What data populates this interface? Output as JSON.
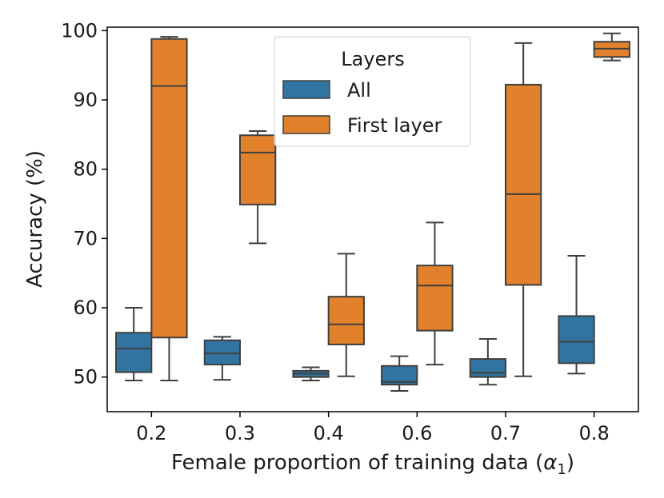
{
  "chart_data": {
    "type": "box",
    "xlabel": "Female proportion of training data (",
    "xlabel_symbol": "α",
    "xlabel_sub": "1",
    "xlabel_close": ")",
    "ylabel": "Accuracy (%)",
    "ylim": [
      45,
      100.5
    ],
    "yticks": [
      50,
      60,
      70,
      80,
      90,
      100
    ],
    "categories": [
      "0.2",
      "0.3",
      "0.4",
      "0.6",
      "0.7",
      "0.8"
    ],
    "legend": {
      "title": "Layers",
      "position": "upper center"
    },
    "grid": false,
    "series": [
      {
        "name": "All",
        "color": "#3274a1",
        "boxes": [
          {
            "whislo": 49.5,
            "q1": 50.7,
            "med": 54.1,
            "q3": 56.4,
            "whishi": 60.0
          },
          {
            "whislo": 49.6,
            "q1": 51.8,
            "med": 53.4,
            "q3": 55.3,
            "whishi": 55.8
          },
          {
            "whislo": 49.5,
            "q1": 50.0,
            "med": 50.5,
            "q3": 50.9,
            "whishi": 51.4
          },
          {
            "whislo": 48.0,
            "q1": 48.9,
            "med": 49.3,
            "q3": 51.6,
            "whishi": 53.0
          },
          {
            "whislo": 48.9,
            "q1": 50.0,
            "med": 50.6,
            "q3": 52.6,
            "whishi": 55.5
          },
          {
            "whislo": 50.5,
            "q1": 52.0,
            "med": 55.1,
            "q3": 58.8,
            "whishi": 67.5
          }
        ]
      },
      {
        "name": "First layer",
        "color": "#e1812c",
        "boxes": [
          {
            "whislo": 49.5,
            "q1": 55.7,
            "med": 92.0,
            "q3": 98.8,
            "whishi": 99.1
          },
          {
            "whislo": 69.3,
            "q1": 74.9,
            "med": 82.4,
            "q3": 84.9,
            "whishi": 85.5
          },
          {
            "whislo": 50.1,
            "q1": 54.7,
            "med": 57.6,
            "q3": 61.6,
            "whishi": 67.8
          },
          {
            "whislo": 51.8,
            "q1": 56.7,
            "med": 63.2,
            "q3": 66.1,
            "whishi": 72.3
          },
          {
            "whislo": 50.1,
            "q1": 63.3,
            "med": 76.4,
            "q3": 92.2,
            "whishi": 98.2
          },
          {
            "whislo": 95.7,
            "q1": 96.2,
            "med": 97.4,
            "q3": 98.4,
            "whishi": 99.6
          }
        ]
      }
    ]
  }
}
